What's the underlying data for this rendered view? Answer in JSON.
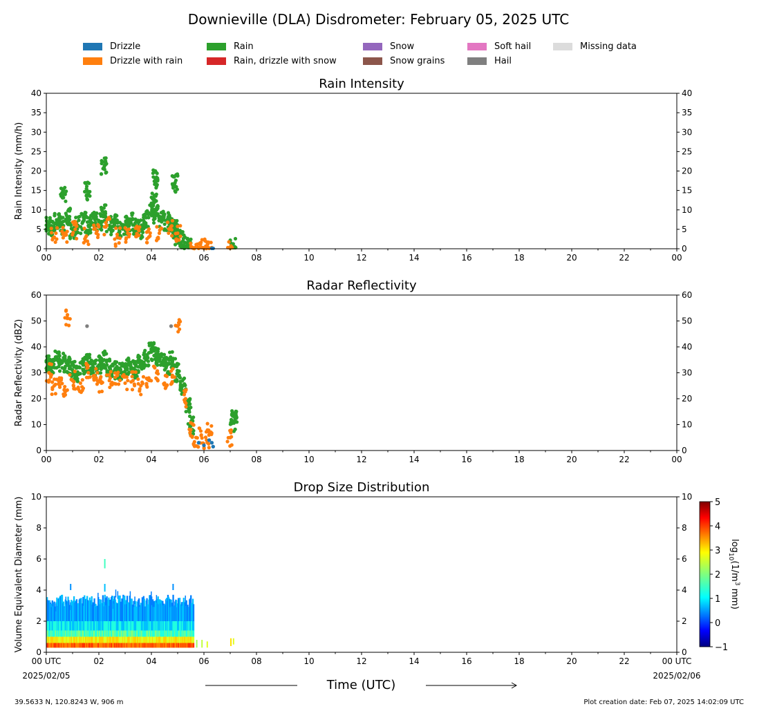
{
  "page": {
    "title": "Downieville (DLA) Disdrometer: February 05, 2025 UTC",
    "footer_left": "39.5633 N, 120.8243 W, 906 m",
    "footer_right": "Plot creation date: Feb 07, 2025 14:02:09 UTC",
    "time_label": "Time (UTC)"
  },
  "legend": [
    {
      "label": "Drizzle",
      "color": "#1f77b4"
    },
    {
      "label": "Drizzle with rain",
      "color": "#ff7f0e"
    },
    {
      "label": "Rain",
      "color": "#2ca02c"
    },
    {
      "label": "Rain, drizzle with snow",
      "color": "#d62728"
    },
    {
      "label": "Snow",
      "color": "#9467bd"
    },
    {
      "label": "Snow grains",
      "color": "#8c564b"
    },
    {
      "label": "Soft hail",
      "color": "#e377c2"
    },
    {
      "label": "Hail",
      "color": "#7f7f7f"
    },
    {
      "label": "Missing data",
      "color": "#dcdcdc"
    }
  ],
  "chart_data": [
    {
      "type": "scatter",
      "title": "Rain Intensity",
      "ylabel": "Rain Intensity (mm/h)",
      "xlim": [
        0,
        24
      ],
      "ylim": [
        0,
        40
      ],
      "yticks": [
        "0",
        "5",
        "10",
        "15",
        "20",
        "25",
        "30",
        "35",
        "40"
      ],
      "xticks": [
        "00",
        "02",
        "04",
        "06",
        "08",
        "10",
        "12",
        "14",
        "16",
        "18",
        "20",
        "22",
        "00"
      ],
      "series": [
        {
          "name": "Rain",
          "color": "#2ca02c",
          "x": [
            0.05,
            0.2,
            0.4,
            0.6,
            0.8,
            1.0,
            1.2,
            1.4,
            1.6,
            1.8,
            2.0,
            2.2,
            2.4,
            2.6,
            2.8,
            3.0,
            3.2,
            3.4,
            3.6,
            3.8,
            4.0,
            4.1,
            4.2,
            4.4,
            4.6,
            4.8,
            4.9,
            5.0,
            5.2,
            5.4,
            7.1,
            0.65,
            1.55,
            2.2,
            4.15,
            4.9
          ],
          "y": [
            6,
            5,
            7,
            6,
            8,
            5,
            6,
            7,
            6,
            8,
            7,
            9,
            6,
            7,
            5,
            6,
            7,
            6,
            5,
            8,
            9,
            12,
            10,
            8,
            7,
            6,
            5,
            3,
            2,
            0.5,
            0.3,
            14,
            15,
            21,
            18,
            17
          ]
        },
        {
          "name": "Drizzle with rain",
          "color": "#ff7f0e",
          "x": [
            0.3,
            0.7,
            1.1,
            1.5,
            1.9,
            2.3,
            2.7,
            3.1,
            3.5,
            3.9,
            4.3,
            4.7,
            5.0,
            5.6,
            5.8,
            6.0,
            6.2,
            7.0
          ],
          "y": [
            3,
            4,
            5,
            3,
            4,
            6,
            3,
            4,
            5,
            3,
            4,
            5,
            4,
            0.1,
            0.1,
            0.1,
            0.1,
            0.1
          ]
        },
        {
          "name": "Drizzle",
          "color": "#1f77b4",
          "x": [
            6.3,
            6.35
          ],
          "y": [
            0.1,
            0.1
          ]
        }
      ]
    },
    {
      "type": "scatter",
      "title": "Radar Reflectivity",
      "ylabel": "Radar Reflectivity (dBZ)",
      "xlim": [
        0,
        24
      ],
      "ylim": [
        0,
        60
      ],
      "yticks": [
        "0",
        "10",
        "20",
        "30",
        "40",
        "50",
        "60"
      ],
      "xticks": [
        "00",
        "02",
        "04",
        "06",
        "08",
        "10",
        "12",
        "14",
        "16",
        "18",
        "20",
        "22",
        "00"
      ],
      "series": [
        {
          "name": "Rain",
          "color": "#2ca02c",
          "x": [
            0.05,
            0.2,
            0.4,
            0.6,
            0.8,
            1.0,
            1.2,
            1.4,
            1.6,
            1.8,
            2.0,
            2.2,
            2.4,
            2.6,
            2.8,
            3.0,
            3.2,
            3.4,
            3.6,
            3.8,
            4.0,
            4.2,
            4.4,
            4.6,
            4.8,
            5.0,
            5.2,
            5.4,
            5.5,
            7.1,
            7.15
          ],
          "y": [
            33,
            32,
            35,
            34,
            33,
            31,
            30,
            33,
            34,
            32,
            33,
            35,
            32,
            31,
            30,
            32,
            33,
            31,
            34,
            35,
            38,
            36,
            34,
            33,
            35,
            30,
            25,
            18,
            10,
            11,
            14
          ]
        },
        {
          "name": "Drizzle with rain",
          "color": "#ff7f0e",
          "x": [
            0.1,
            0.3,
            0.5,
            0.7,
            0.8,
            1.0,
            1.3,
            1.6,
            1.9,
            2.1,
            2.4,
            2.7,
            3.0,
            3.3,
            3.6,
            3.9,
            4.2,
            4.5,
            4.8,
            5.0,
            5.3,
            5.5,
            5.7,
            5.9,
            6.1,
            6.2,
            7.0
          ],
          "y": [
            30,
            25,
            28,
            22,
            51,
            27,
            26,
            30,
            28,
            26,
            27,
            29,
            26,
            27,
            25,
            28,
            30,
            26,
            29,
            48,
            20,
            8,
            5,
            6,
            4,
            7,
            5
          ]
        },
        {
          "name": "Drizzle",
          "color": "#1f77b4",
          "x": [
            5.8,
            6.0,
            6.2,
            6.3,
            6.35
          ],
          "y": [
            3,
            2,
            4,
            3,
            1.5
          ]
        },
        {
          "name": "Hail",
          "color": "#7f7f7f",
          "x": [
            1.55,
            4.75
          ],
          "y": [
            48,
            48
          ]
        }
      ]
    },
    {
      "type": "heatmap",
      "title": "Drop Size Distribution",
      "ylabel": "Volume Equivalent Diameter (mm)",
      "xlim": [
        0,
        24
      ],
      "ylim": [
        0,
        10
      ],
      "yticks": [
        "0",
        "2",
        "4",
        "6",
        "8",
        "10"
      ],
      "xticks": [
        "00 UTC",
        "02",
        "04",
        "06",
        "08",
        "10",
        "12",
        "14",
        "16",
        "18",
        "20",
        "22",
        "00 UTC"
      ],
      "x_start_date": "2025/02/05",
      "x_end_date": "2025/02/06",
      "colorbar": {
        "label": "log10(1/m3 mm)",
        "range": [
          -1,
          5
        ],
        "ticks": [
          "−1",
          "0",
          "1",
          "2",
          "3",
          "4",
          "5"
        ]
      },
      "active_hours": [
        0,
        5.6
      ]
    }
  ]
}
